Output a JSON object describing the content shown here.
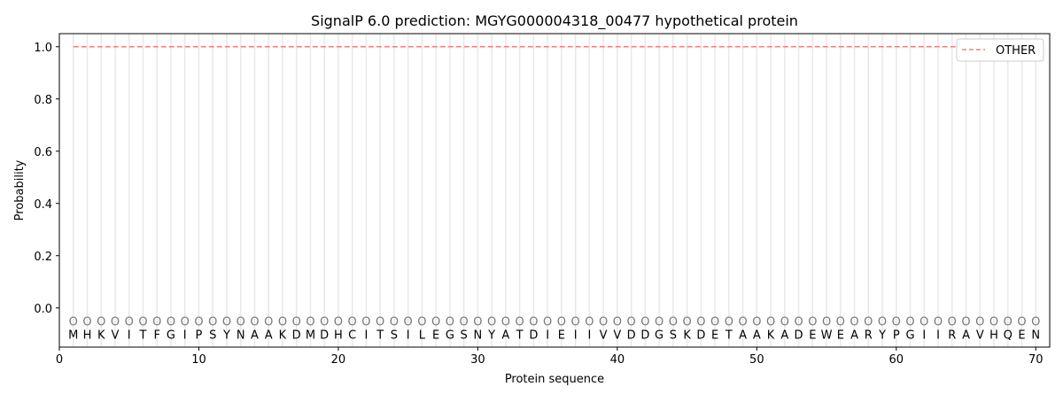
{
  "chart_data": {
    "type": "line",
    "title": "SignalP 6.0 prediction: MGYG000004318_00477 hypothetical protein",
    "xlabel": "Protein sequence",
    "ylabel": "Probability",
    "xlim": [
      0,
      71
    ],
    "ylim": [
      -0.15,
      1.05
    ],
    "xticks": [
      0,
      10,
      20,
      30,
      40,
      50,
      60,
      70
    ],
    "yticks": [
      0.0,
      0.2,
      0.4,
      0.6,
      0.8,
      1.0
    ],
    "ytick_labels": [
      "0.0",
      "0.2",
      "0.4",
      "0.6",
      "0.8",
      "1.0"
    ],
    "sequence": [
      "M",
      "H",
      "K",
      "V",
      "I",
      "T",
      "F",
      "G",
      "I",
      "P",
      "S",
      "Y",
      "N",
      "A",
      "A",
      "K",
      "D",
      "M",
      "D",
      "H",
      "C",
      "I",
      "T",
      "S",
      "I",
      "L",
      "E",
      "G",
      "S",
      "N",
      "Y",
      "A",
      "T",
      "D",
      "I",
      "E",
      "I",
      "I",
      "V",
      "V",
      "D",
      "D",
      "G",
      "S",
      "K",
      "D",
      "E",
      "T",
      "A",
      "A",
      "K",
      "A",
      "D",
      "E",
      "W",
      "E",
      "A",
      "R",
      "Y",
      "P",
      "G",
      "I",
      "I",
      "R",
      "A",
      "V",
      "H",
      "Q",
      "E",
      "N"
    ],
    "predicted_label": "O",
    "series": [
      {
        "name": "OTHER",
        "color": "#f08080",
        "style": "dashed",
        "x_range": [
          1,
          70
        ],
        "value": 1.0
      }
    ],
    "legend": "top-right",
    "grid": "vertical lines at each residue"
  }
}
